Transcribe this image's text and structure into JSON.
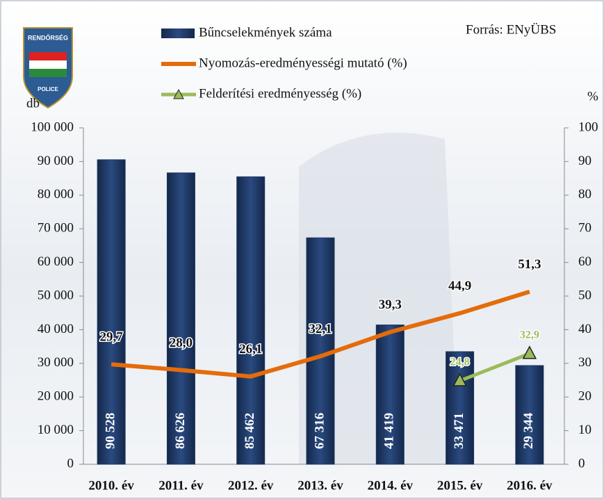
{
  "chart_data": {
    "type": "bar",
    "logo": {
      "top": "RENDŐRSÉG",
      "bottom": "POLICE"
    },
    "source": "Forrás: ENyÜBS",
    "ylabel": "db",
    "y2label": "%",
    "categories": [
      "2010. év",
      "2011. év",
      "2012. év",
      "2013. év",
      "2014. év",
      "2015. év",
      "2016. év"
    ],
    "series": [
      {
        "name": "Bűncselekmények száma",
        "type": "bar",
        "color": "#1f3864",
        "values": [
          90528,
          86626,
          85462,
          67316,
          41419,
          33471,
          29344
        ],
        "value_labels": [
          "90 528",
          "86 626",
          "85 462",
          "67 316",
          "41 419",
          "33 471",
          "29 344"
        ]
      },
      {
        "name": "Nyomozás-eredményességi mutató (%)",
        "type": "line",
        "axis": "y2",
        "color": "#e46c0a",
        "values": [
          29.7,
          28.0,
          26.1,
          32.1,
          39.3,
          44.9,
          51.3
        ],
        "value_labels": [
          "29,7",
          "28,0",
          "26,1",
          "32,1",
          "39,3",
          "44,9",
          "51,3"
        ]
      },
      {
        "name": "Felderítési eredményesség (%)",
        "type": "line",
        "axis": "y2",
        "color": "#9bbb59",
        "marker": "triangle",
        "values": [
          null,
          null,
          null,
          null,
          null,
          24.8,
          32.9
        ],
        "value_labels": [
          null,
          null,
          null,
          null,
          null,
          "24,8",
          "32,9"
        ]
      }
    ],
    "ylim": [
      0,
      100000
    ],
    "yticks": [
      0,
      {
        "value": 10000,
        "label": "10 000"
      },
      {
        "value": 20000,
        "label": "20 000"
      },
      {
        "value": 30000,
        "label": "30 000"
      },
      {
        "value": 40000,
        "label": "40 000"
      },
      {
        "value": 50000,
        "label": "50 000"
      },
      {
        "value": 60000,
        "label": "60 000"
      },
      {
        "value": 70000,
        "label": "70 000"
      },
      {
        "value": 80000,
        "label": "80 000"
      },
      {
        "value": 90000,
        "label": "90 000"
      },
      {
        "value": 100000,
        "label": "100 000"
      }
    ],
    "y2lim": [
      0,
      100
    ],
    "y2ticks": [
      0,
      10,
      20,
      30,
      40,
      50,
      60,
      70,
      80,
      90,
      100
    ]
  }
}
